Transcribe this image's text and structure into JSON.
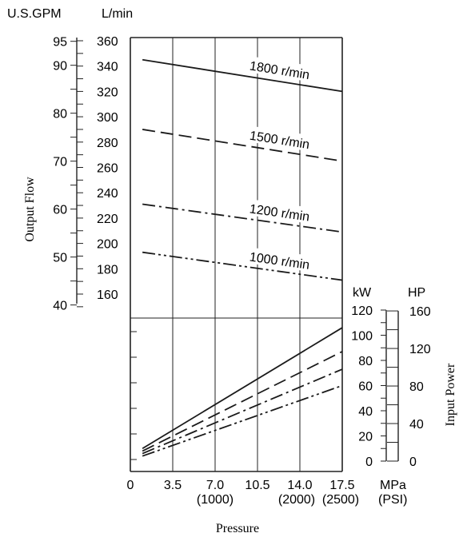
{
  "chart_data": {
    "type": "line",
    "flow_axis": {
      "gpm_unit": "U.S.GPM",
      "lmin_unit": "L/min",
      "title": "Output Flow",
      "gpm_ticks": [
        "95",
        "90",
        "80",
        "70",
        "60",
        "50",
        "40"
      ],
      "lmin_ticks": [
        "360",
        "340",
        "320",
        "300",
        "280",
        "260",
        "240",
        "220",
        "200",
        "180",
        "160"
      ],
      "lmin_range": [
        144,
        360
      ]
    },
    "power_axis": {
      "kw_unit": "kW",
      "hp_unit": "HP",
      "title": "Input Power",
      "kw_ticks": [
        "120",
        "100",
        "80",
        "60",
        "40",
        "20",
        "0"
      ],
      "hp_ticks": [
        "160",
        "120",
        "80",
        "40",
        "0"
      ],
      "kw_range": [
        0,
        120
      ]
    },
    "pressure_axis": {
      "title": "Pressure",
      "unit": "MPa",
      "unit_psi": "(PSI)",
      "ticks": [
        "0",
        "3.5",
        "7.0",
        "10.5",
        "14.0",
        "17.5"
      ],
      "psi_labels": [
        "(1000)",
        "(2000)",
        "(2500)"
      ],
      "range": [
        0,
        17.5
      ]
    },
    "flow_series": [
      {
        "name": "1800 r/min",
        "dash": "solid",
        "x": [
          1,
          17.5
        ],
        "y": [
          345,
          320
        ]
      },
      {
        "name": "1500 r/min",
        "dash": "dash",
        "x": [
          1,
          17.5
        ],
        "y": [
          290,
          265
        ]
      },
      {
        "name": "1200 r/min",
        "dash": "dashdot",
        "x": [
          1,
          17.5
        ],
        "y": [
          231,
          209
        ]
      },
      {
        "name": "1000 r/min",
        "dash": "dashdotdot",
        "x": [
          1,
          17.5
        ],
        "y": [
          193,
          171
        ]
      }
    ],
    "power_series": [
      {
        "speed": "1800 r/min",
        "dash": "solid",
        "x": [
          1,
          17.5
        ],
        "y": [
          10,
          106
        ]
      },
      {
        "speed": "1500 r/min",
        "dash": "dash",
        "x": [
          1,
          17.5
        ],
        "y": [
          8,
          87
        ]
      },
      {
        "speed": "1200 r/min",
        "dash": "dashdot",
        "x": [
          1,
          17.5
        ],
        "y": [
          6,
          73
        ]
      },
      {
        "speed": "1000 r/min",
        "dash": "dashdotdot",
        "x": [
          1,
          17.5
        ],
        "y": [
          4,
          60
        ]
      }
    ]
  }
}
